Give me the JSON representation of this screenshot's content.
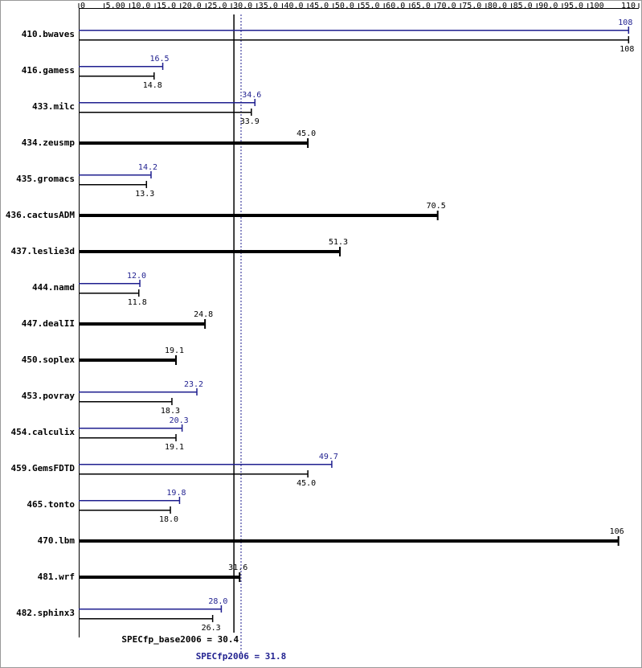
{
  "chart_data": {
    "type": "bar",
    "categories": [
      "410.bwaves",
      "416.gamess",
      "433.milc",
      "434.zeusmp",
      "435.gromacs",
      "436.cactusADM",
      "437.leslie3d",
      "444.namd",
      "447.dealII",
      "450.soplex",
      "453.povray",
      "454.calculix",
      "459.GemsFDTD",
      "465.tonto",
      "470.lbm",
      "481.wrf",
      "482.sphinx3"
    ],
    "series": [
      {
        "color": "#1f1f8f",
        "values": [
          108,
          16.5,
          34.6,
          null,
          14.2,
          null,
          null,
          12.0,
          null,
          null,
          23.2,
          20.3,
          49.7,
          19.8,
          null,
          null,
          28.0
        ],
        "value_labels": [
          "108",
          "16.5",
          "34.6",
          null,
          "14.2",
          null,
          null,
          "12.0",
          null,
          null,
          "23.2",
          "20.3",
          "49.7",
          "19.8",
          null,
          null,
          "28.0"
        ]
      },
      {
        "color": "#000000",
        "values": [
          108,
          14.8,
          33.9,
          45.0,
          13.3,
          70.5,
          51.3,
          11.8,
          24.8,
          19.1,
          18.3,
          19.1,
          45.0,
          18.0,
          106,
          31.6,
          26.3
        ],
        "value_labels": [
          "108",
          "14.8",
          "33.9",
          "45.0",
          "13.3",
          "70.5",
          "51.3",
          "11.8",
          "24.8",
          "19.1",
          "18.3",
          "19.1",
          "45.0",
          "18.0",
          "106",
          "31.6",
          "26.3"
        ]
      }
    ],
    "xlim": [
      0,
      110
    ],
    "xticks": [
      0,
      {
        "value": 5,
        "label": "5.00"
      },
      {
        "value": 10,
        "label": "10.0"
      },
      {
        "value": 15,
        "label": "15.0"
      },
      {
        "value": 20,
        "label": "20.0"
      },
      {
        "value": 25,
        "label": "25.0"
      },
      {
        "value": 30,
        "label": "30.0"
      },
      {
        "value": 35,
        "label": "35.0"
      },
      {
        "value": 40,
        "label": "40.0"
      },
      {
        "value": 45,
        "label": "45.0"
      },
      {
        "value": 50,
        "label": "50.0"
      },
      {
        "value": 55,
        "label": "55.0"
      },
      {
        "value": 60,
        "label": "60.0"
      },
      {
        "value": 65,
        "label": "65.0"
      },
      {
        "value": 70,
        "label": "70.0"
      },
      {
        "value": 75,
        "label": "75.0"
      },
      {
        "value": 80,
        "label": "80.0"
      },
      {
        "value": 85,
        "label": "85.0"
      },
      {
        "value": 90,
        "label": "90.0"
      },
      {
        "value": 95,
        "label": "95.0"
      },
      100,
      110
    ],
    "ref_lines": [
      {
        "label": "SPECfp_base2006 = 30.4",
        "value": 30.4,
        "color": "#000000",
        "style": "solid"
      },
      {
        "label": "SPECfp2006 = 31.8",
        "value": 31.8,
        "color": "#1f1f8f",
        "style": "dotted"
      }
    ]
  }
}
